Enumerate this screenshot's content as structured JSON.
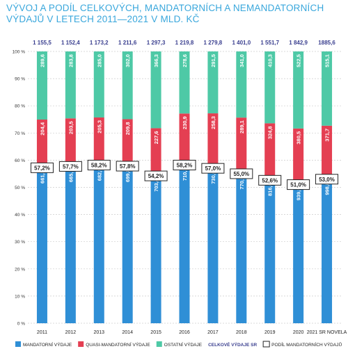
{
  "title_line1": "VÝVOJ A PODÍL CELKOVÝCH, MANDATORNÍCH A NEMANDATORNÍCH",
  "title_line2": "VÝDAJŮ V LETECH 2011—2021 V MLD. KČ",
  "colors": {
    "mandatory": "#2f8fd6",
    "quasi": "#e43f52",
    "other": "#4ec9a6",
    "total": "#3a3f8f",
    "title": "#39a7dc"
  },
  "chart_data": {
    "type": "bar",
    "stacked": "percent",
    "categories": [
      "2011",
      "2012",
      "2013",
      "2014",
      "2015",
      "2016",
      "2017",
      "2018",
      "2019",
      "2020",
      "2021 SR NOVELA"
    ],
    "totals": [
      "1 155,5",
      "1 152,4",
      "1 173,2",
      "1 211,6",
      "1 297,3",
      "1 219,8",
      "1 279,8",
      "1 401,0",
      "1 551,7",
      "1 842,9",
      "1885,6"
    ],
    "series": [
      {
        "name": "MANDATORNÍ VÝDAJE",
        "values": [
          661.5,
          665.1,
          682.9,
          699.8,
          703.4,
          710.3,
          730.0,
          770.9,
          816.6,
          939.9,
          998.8
        ],
        "labels": [
          "661,5",
          "665,1",
          "682,9",
          "699,8",
          "703,4",
          "710,3",
          "730,0",
          "770,9",
          "816,6",
          "939,9",
          "998,8"
        ]
      },
      {
        "name": "QUASI-MANDATORNÍ VÝDAJE",
        "values": [
          204.4,
          203.5,
          205.3,
          209.8,
          227.6,
          230.9,
          258.3,
          289.1,
          324.8,
          380.5,
          371.7
        ],
        "labels": [
          "204,4",
          "203,5",
          "205,3",
          "209,8",
          "227,6",
          "230,9",
          "258,3",
          "289,1",
          "324,8",
          "380,5",
          "371,7"
        ]
      },
      {
        "name": "OSTATNÍ VÝDAJE",
        "values": [
          289.6,
          283.8,
          285.0,
          302.0,
          366.3,
          278.6,
          291.5,
          341.0,
          410.3,
          522.5,
          515.1
        ],
        "labels": [
          "289,6",
          "283,8",
          "285,0",
          "302,0",
          "366,3",
          "278,6",
          "291,5",
          "341,0",
          "410,3",
          "522,5",
          "515,1"
        ]
      }
    ],
    "share_series": {
      "name": "PODÍL MANDATORNÍCH VÝDAJŮ",
      "values": [
        57.2,
        57.7,
        58.2,
        57.8,
        54.2,
        58.2,
        57.0,
        55.0,
        52.6,
        51.0,
        53.0
      ],
      "labels": [
        "57,2%",
        "57,7%",
        "58,2%",
        "57,8%",
        "54,2%",
        "58,2%",
        "57,0%",
        "55,0%",
        "52,6%",
        "51,0%",
        "53,0%"
      ]
    },
    "total_series_name": "CELKOVÉ VÝDAJE SR",
    "yticks": [
      "0 %",
      "10 %",
      "20 %",
      "30 %",
      "40 %",
      "50 %",
      "60 %",
      "70 %",
      "80 %",
      "90 %",
      "100 %"
    ],
    "ylim": [
      0,
      100
    ],
    "grid": true,
    "legend_position": "bottom"
  }
}
